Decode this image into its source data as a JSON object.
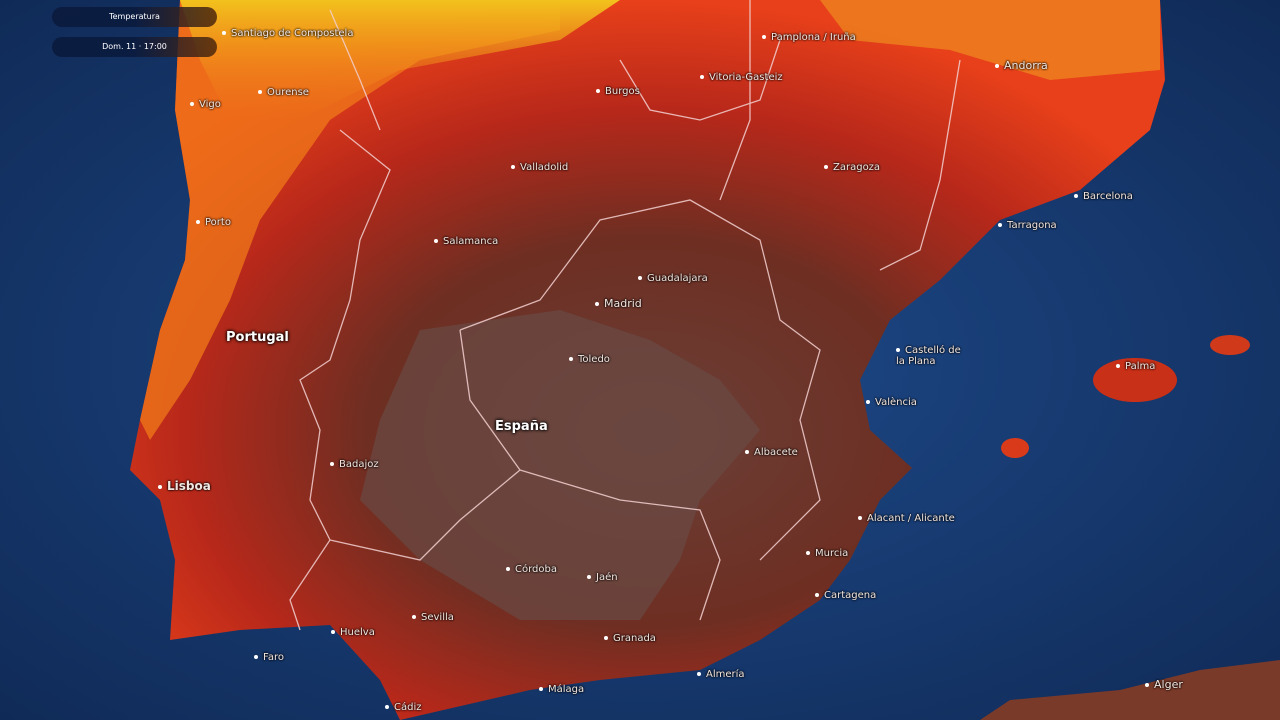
{
  "overlay": {
    "layer_label": "Temperatura",
    "time_label": "Dom. 11 · 17:00"
  },
  "colors": {
    "ocean": "#17366b",
    "deep_ocean": "#0e2650",
    "hot_interior": "#5e3530",
    "red": "#d8321a",
    "orange": "#f07a1a",
    "yellow": "#f2c21c",
    "borders": "#f3d0d0"
  },
  "countries": [
    "Portugal",
    "España",
    "Andorra"
  ],
  "cities": [
    "Santiago de Compostela",
    "Ourense",
    "Vigo",
    "Porto",
    "Burgos",
    "Vitoria-Gasteiz",
    "Pamplona / Iruña",
    "Zaragoza",
    "Valladolid",
    "Salamanca",
    "Barcelona",
    "Tarragona",
    "Guadalajara",
    "Madrid",
    "Toledo",
    "Castelló de la Plana",
    "València",
    "Palma",
    "Albacete",
    "Badajoz",
    "Lisboa",
    "Córdoba",
    "Jaén",
    "Sevilla",
    "Huelva",
    "Faro",
    "Cádiz",
    "Málaga",
    "Granada",
    "Almería",
    "Murcia",
    "Cartagena",
    "Alacant / Alicante",
    "Alger"
  ]
}
